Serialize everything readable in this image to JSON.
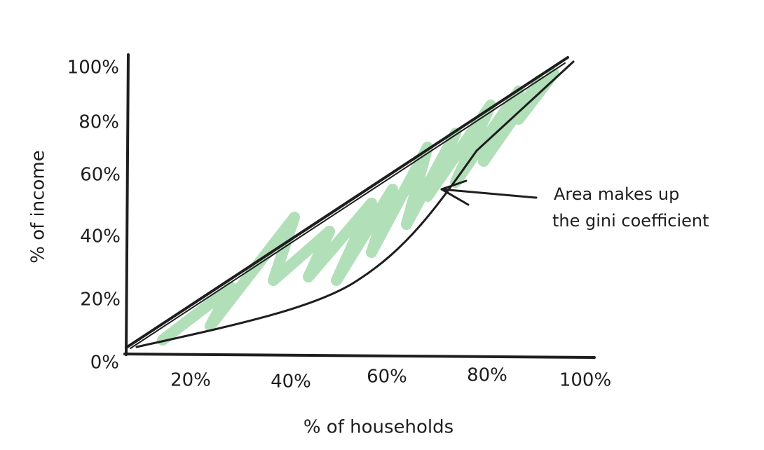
{
  "axes": {
    "y_label": "% of income",
    "x_label": "% of households",
    "y_ticks": [
      "100%",
      "80%",
      "60%",
      "40%",
      "20%",
      "0%"
    ],
    "x_ticks": [
      "20%",
      "40%",
      "60%",
      "80%",
      "100%"
    ]
  },
  "annotation": {
    "lines": [
      "Area makes up",
      "the gini coefficient"
    ]
  }
}
